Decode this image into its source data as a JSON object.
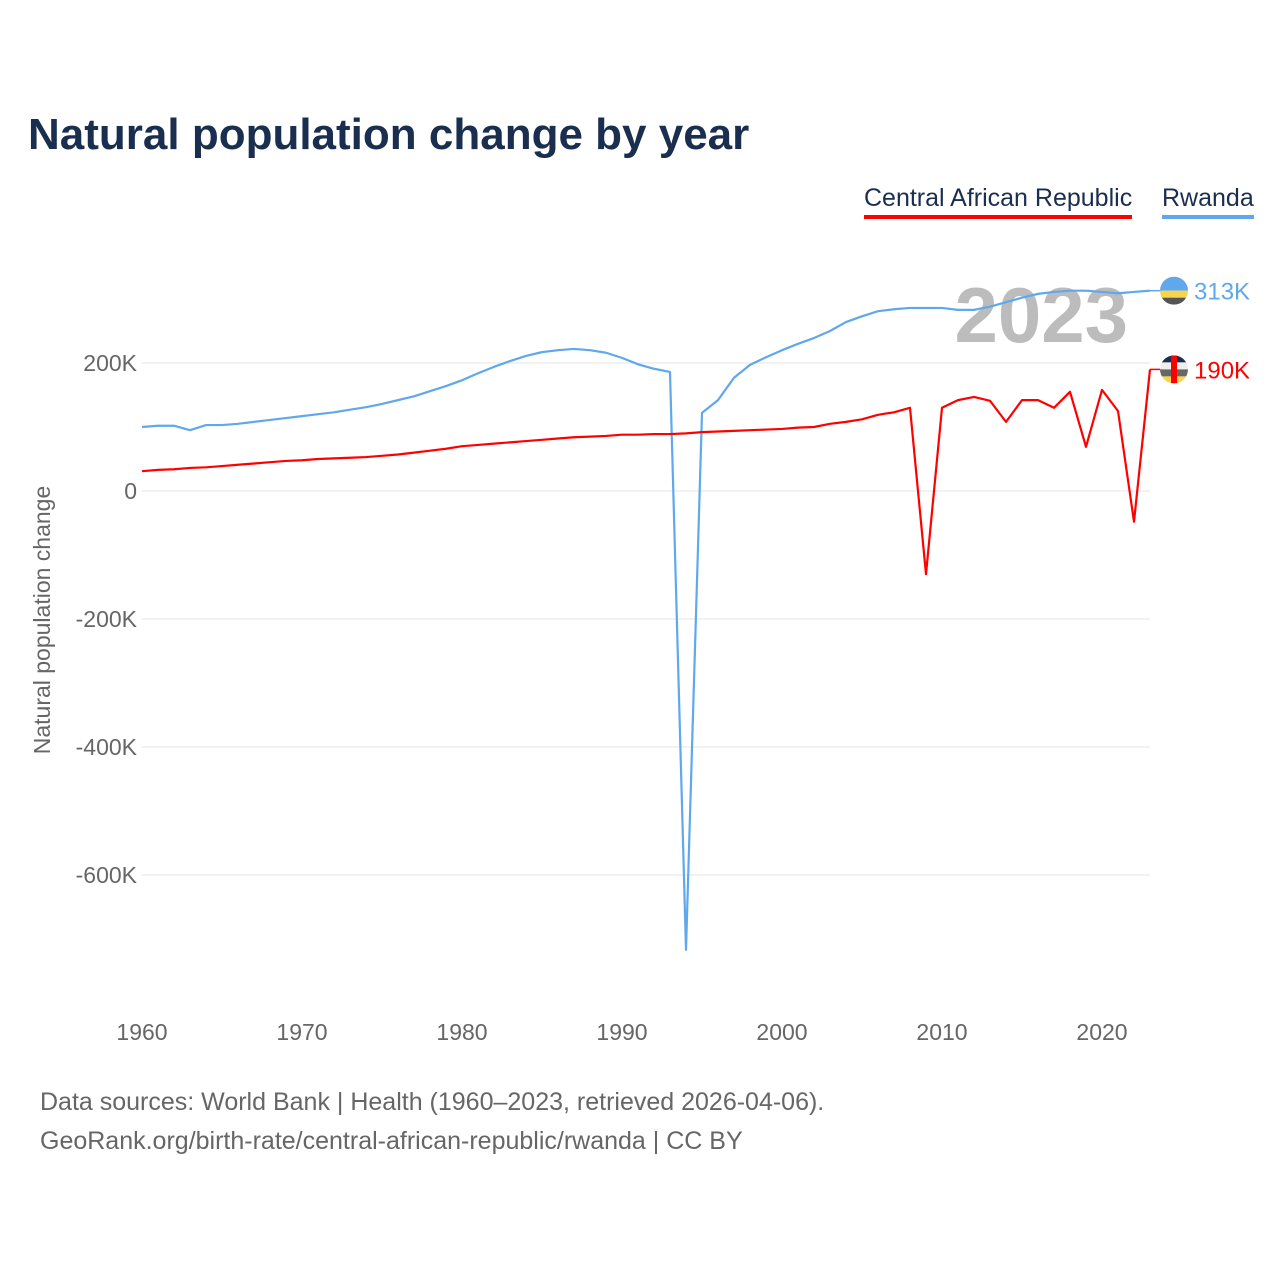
{
  "title": "Natural population change by year",
  "legend": [
    {
      "name": "Central African Republic",
      "color": "#ff0000"
    },
    {
      "name": "Rwanda",
      "color": "#5fa8ec"
    }
  ],
  "footer": {
    "line1": "Data sources: World Bank | Health (1960–2023, retrieved 2026-04-06).",
    "line2": "GeoRank.org/birth-rate/central-african-republic/rwanda | CC BY"
  },
  "chart_data": {
    "type": "line",
    "title": "Natural population change by year",
    "ylabel": "Natural population change",
    "xlabel": "",
    "year_label": "2023",
    "xlim": [
      1960,
      2023
    ],
    "ylim": [
      -750,
      300
    ],
    "x_ticks": [
      1960,
      1970,
      1980,
      1990,
      2000,
      2010,
      2020
    ],
    "y_ticks": [
      {
        "v": 200,
        "label": "200K"
      },
      {
        "v": 0,
        "label": "0"
      },
      {
        "v": -200,
        "label": "-200K"
      },
      {
        "v": -400,
        "label": "-400K"
      },
      {
        "v": -600,
        "label": "-600K"
      }
    ],
    "units": "thousands",
    "series": [
      {
        "name": "Rwanda",
        "color": "#5fa8ec",
        "end_label": "313K",
        "values": [
          100,
          102,
          102,
          95,
          103,
          103,
          105,
          108,
          111,
          114,
          117,
          120,
          123,
          127,
          131,
          136,
          142,
          148,
          156,
          164,
          173,
          184,
          194,
          203,
          211,
          217,
          220,
          222,
          220,
          216,
          208,
          198,
          191,
          186,
          -717,
          122,
          142,
          177,
          197,
          209,
          220,
          230,
          239,
          250,
          264,
          273,
          281,
          284,
          286,
          286,
          286,
          283,
          283,
          288,
          295,
          302,
          308,
          311,
          313,
          313,
          311,
          309,
          311,
          313
        ]
      },
      {
        "name": "Central African Republic",
        "color": "#ff0000",
        "end_label": "190K",
        "values": [
          31,
          33,
          34,
          36,
          37,
          39,
          41,
          43,
          45,
          47,
          48,
          50,
          51,
          52,
          53,
          55,
          57,
          60,
          63,
          66,
          70,
          72,
          74,
          76,
          78,
          80,
          82,
          84,
          85,
          86,
          88,
          88,
          89,
          89,
          90,
          92,
          93,
          94,
          95,
          96,
          97,
          99,
          100,
          105,
          108,
          112,
          119,
          123,
          130,
          -130,
          130,
          142,
          147,
          141,
          108,
          142,
          142,
          130,
          155,
          69,
          158,
          125,
          -48,
          190
        ]
      }
    ]
  }
}
